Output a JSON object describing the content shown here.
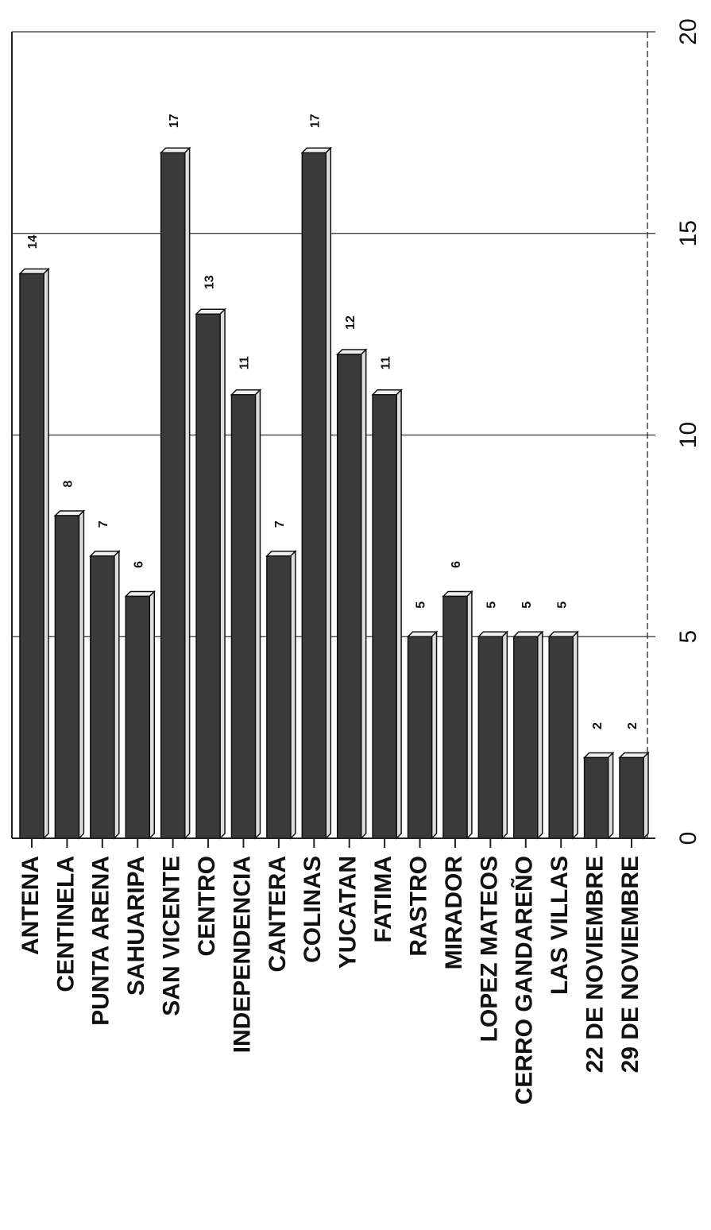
{
  "chart_data": {
    "type": "bar",
    "categories": [
      "ANTENA",
      "CENTINELA",
      "PUNTA ARENA",
      "SAHUARIPA",
      "SAN VICENTE",
      "CENTRO",
      "INDEPENDENCIA",
      "CANTERA",
      "COLINAS",
      "YUCATAN",
      "FATIMA",
      "RASTRO",
      "MIRADOR",
      "LOPEZ MATEOS",
      "CERRO GANDAREÑO",
      "LAS VILLAS",
      "22 DE NOVIEMBRE",
      "29 DE NOVIEMBRE"
    ],
    "values": [
      14,
      8,
      7,
      6,
      17,
      13,
      11,
      7,
      17,
      12,
      11,
      5,
      6,
      5,
      5,
      5,
      2,
      2
    ],
    "color": "#3a3a3a",
    "ylim": [
      0,
      20
    ],
    "yticks": [
      0,
      5,
      10,
      15,
      20
    ],
    "grid": true
  }
}
